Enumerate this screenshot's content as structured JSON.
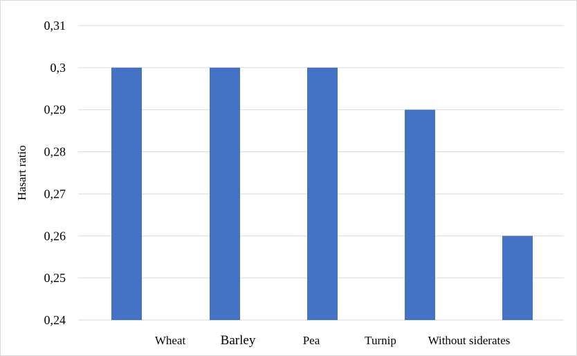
{
  "chart_data": {
    "type": "bar",
    "ylabel": "Hasart ratio",
    "xlabel": "",
    "title": "",
    "ylim": [
      0.24,
      0.31
    ],
    "ytick_values": [
      0.24,
      0.25,
      0.26,
      0.27,
      0.28,
      0.29,
      0.3,
      0.31
    ],
    "ytick_labels": [
      "0,24",
      "0,25",
      "0,26",
      "0,27",
      "0,28",
      "0,29",
      "0,3",
      "0,31"
    ],
    "category_labels": [
      "Wheat",
      "Barley",
      "Pea",
      "Turnip",
      "Without siderates"
    ],
    "bars": [
      0.3,
      0.3,
      0.3,
      0.29,
      0.26
    ],
    "grid": true,
    "legend": "none",
    "bar_color": "#4472c4",
    "grid_color": "#d9d9d9"
  }
}
